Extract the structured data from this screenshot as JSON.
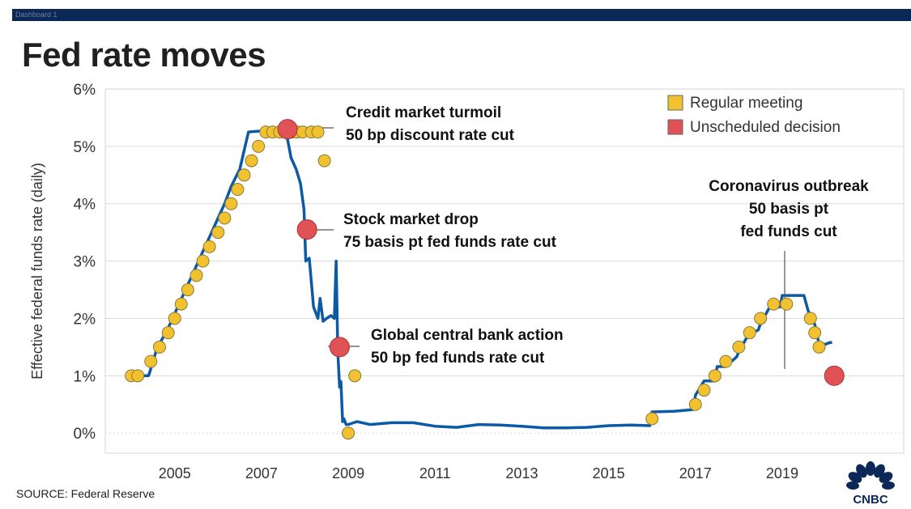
{
  "header": {
    "tab_label": "Dashboard 1"
  },
  "title": "Fed rate moves",
  "source": "SOURCE: Federal Reserve",
  "logo": {
    "name": "cnbc-logo",
    "text": "CNBC"
  },
  "colors": {
    "line": "#0c5aa6",
    "regular": "#f2c130",
    "unscheduled": "#e05256",
    "header_bar": "#0c2857",
    "annotation_text": "#111111"
  },
  "chart_data": {
    "type": "line",
    "title": "Fed rate moves",
    "xlabel": "",
    "ylabel": "Effective federal funds rate (daily)",
    "xlim": [
      2003.4,
      2021.8
    ],
    "ylim": [
      -0.35,
      6.0
    ],
    "yticks": [
      0,
      1,
      2,
      3,
      4,
      5,
      6
    ],
    "ytick_labels": [
      "0%",
      "1%",
      "2%",
      "3%",
      "4%",
      "5%",
      "6%"
    ],
    "xticks": [
      2005,
      2007,
      2009,
      2011,
      2013,
      2015,
      2017,
      2019
    ],
    "xtick_labels": [
      "2005",
      "2007",
      "2009",
      "2011",
      "2013",
      "2015",
      "2017",
      "2019"
    ],
    "grid": true,
    "legend": {
      "placement": "top-right",
      "items": [
        {
          "label": "Regular meeting",
          "kind": "regular"
        },
        {
          "label": "Unscheduled decision",
          "kind": "unscheduled"
        }
      ]
    },
    "series": [
      {
        "name": "Effective federal funds rate",
        "x": [
          2004.0,
          2004.4,
          2004.5,
          2004.6,
          2004.8,
          2004.95,
          2005.1,
          2005.25,
          2005.4,
          2005.55,
          2005.7,
          2005.85,
          2006.0,
          2006.15,
          2006.3,
          2006.5,
          2006.7,
          2007.0,
          2007.3,
          2007.55,
          2007.62,
          2007.68,
          2007.8,
          2007.9,
          2007.98,
          2008.02,
          2008.1,
          2008.2,
          2008.3,
          2008.35,
          2008.42,
          2008.5,
          2008.6,
          2008.68,
          2008.72,
          2008.76,
          2008.8,
          2008.83,
          2008.87,
          2008.9,
          2008.95,
          2009.0,
          2009.2,
          2009.5,
          2010.0,
          2010.5,
          2011.0,
          2011.5,
          2012.0,
          2012.5,
          2013.0,
          2013.5,
          2014.0,
          2014.5,
          2015.0,
          2015.5,
          2015.95,
          2016.0,
          2016.5,
          2016.95,
          2017.0,
          2017.2,
          2017.45,
          2017.5,
          2017.7,
          2017.95,
          2018.0,
          2018.2,
          2018.45,
          2018.5,
          2018.7,
          2018.95,
          2019.0,
          2019.3,
          2019.5,
          2019.6,
          2019.75,
          2019.85,
          2020.0,
          2020.1,
          2020.15
        ],
        "values": [
          1.0,
          1.0,
          1.25,
          1.5,
          1.75,
          2.0,
          2.25,
          2.5,
          2.75,
          3.0,
          3.25,
          3.5,
          3.75,
          4.0,
          4.3,
          4.6,
          5.25,
          5.27,
          5.27,
          5.3,
          5.05,
          4.8,
          4.6,
          4.35,
          3.9,
          3.0,
          3.05,
          2.2,
          2.0,
          2.35,
          1.95,
          2.0,
          2.05,
          2.0,
          3.0,
          1.4,
          0.8,
          0.9,
          0.2,
          0.25,
          0.15,
          0.15,
          0.2,
          0.15,
          0.18,
          0.18,
          0.12,
          0.1,
          0.15,
          0.14,
          0.12,
          0.09,
          0.09,
          0.1,
          0.13,
          0.14,
          0.13,
          0.37,
          0.38,
          0.41,
          0.66,
          0.91,
          0.91,
          1.16,
          1.16,
          1.33,
          1.42,
          1.69,
          1.8,
          1.91,
          2.18,
          2.2,
          2.4,
          2.4,
          2.4,
          2.13,
          1.9,
          1.55,
          1.55,
          1.58,
          1.58
        ]
      }
    ],
    "regular_meetings": {
      "x": [
        2004.0,
        2004.15,
        2004.45,
        2004.65,
        2004.85,
        2005.0,
        2005.15,
        2005.3,
        2005.5,
        2005.65,
        2005.8,
        2006.0,
        2006.15,
        2006.3,
        2006.45,
        2006.6,
        2006.77,
        2006.93,
        2007.1,
        2007.26,
        2007.42,
        2007.58,
        2007.7,
        2007.82,
        2007.95,
        2008.15,
        2008.3,
        2008.45,
        2009.0,
        2009.15,
        2016.0,
        2017.0,
        2017.2,
        2017.45,
        2017.7,
        2018.0,
        2018.25,
        2018.5,
        2018.8,
        2019.1,
        2019.65,
        2019.75,
        2019.85
      ],
      "values": [
        1.0,
        1.0,
        1.25,
        1.5,
        1.75,
        2.0,
        2.25,
        2.5,
        2.75,
        3.0,
        3.25,
        3.5,
        3.75,
        4.0,
        4.25,
        4.5,
        4.75,
        5.0,
        5.25,
        5.25,
        5.25,
        5.25,
        5.25,
        5.25,
        5.25,
        5.25,
        5.25,
        4.75,
        0.0,
        1.0,
        0.25,
        0.5,
        0.75,
        1.0,
        1.25,
        1.5,
        1.75,
        2.0,
        2.25,
        2.25,
        2.0,
        1.75,
        1.5
      ]
    },
    "unscheduled_decisions": {
      "x": [
        2007.6,
        2008.05,
        2008.8,
        2020.2
      ],
      "values": [
        5.3,
        3.55,
        1.5,
        1.0
      ]
    },
    "annotations": [
      {
        "lines": [
          "Credit market turmoil",
          "50 bp discount rate cut"
        ],
        "x": 2007.6,
        "y": 5.3
      },
      {
        "lines": [
          "Stock market drop",
          "75 basis pt fed funds rate cut"
        ],
        "x": 2008.05,
        "y": 3.55
      },
      {
        "lines": [
          "Global central bank action",
          "50 bp fed funds rate cut"
        ],
        "x": 2008.8,
        "y": 1.5
      },
      {
        "lines": [
          "Coronavirus outbreak",
          "50 basis pt",
          "fed funds cut"
        ],
        "x": 2020.2,
        "y": 1.0
      }
    ]
  }
}
